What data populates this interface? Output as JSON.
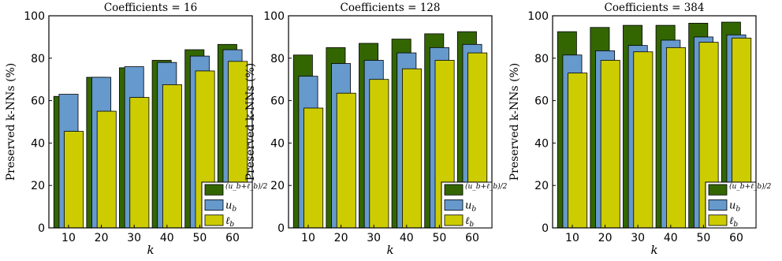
{
  "chart_data": [
    {
      "type": "bar",
      "title": "Coefficients = 16",
      "xlabel": "k",
      "ylabel": "Preserved k-NNs (%)",
      "categories": [
        "10",
        "20",
        "30",
        "40",
        "50",
        "60"
      ],
      "ylim": [
        0,
        100
      ],
      "yticks": [
        "0",
        "20",
        "40",
        "60",
        "80",
        "100"
      ],
      "grid": false,
      "legend_position": "bottom-right",
      "series": [
        {
          "name": "(u_b+ℓ_b)/2",
          "color": "#336600",
          "values": [
            62,
            71,
            75.5,
            79,
            84,
            86.5
          ]
        },
        {
          "name": "u_b",
          "color": "#6699cc",
          "values": [
            63,
            71,
            76,
            78,
            81,
            84
          ]
        },
        {
          "name": "ℓ_b",
          "color": "#cccc00",
          "values": [
            45.5,
            55,
            61.5,
            67.5,
            74,
            78.5
          ]
        }
      ]
    },
    {
      "type": "bar",
      "title": "Coefficients = 128",
      "xlabel": "k",
      "ylabel": "Preserved k-NNs (%)",
      "categories": [
        "10",
        "20",
        "30",
        "40",
        "50",
        "60"
      ],
      "ylim": [
        0,
        100
      ],
      "yticks": [
        "0",
        "20",
        "40",
        "60",
        "80",
        "100"
      ],
      "grid": false,
      "legend_position": "bottom-right",
      "series": [
        {
          "name": "(u_b+ℓ_b)/2",
          "color": "#336600",
          "values": [
            81.5,
            85,
            87,
            89,
            91.5,
            92.5
          ]
        },
        {
          "name": "u_b",
          "color": "#6699cc",
          "values": [
            71.5,
            77.5,
            79,
            82.5,
            85,
            86.5
          ]
        },
        {
          "name": "ℓ_b",
          "color": "#cccc00",
          "values": [
            56.5,
            63.5,
            70,
            75,
            79,
            82.5
          ]
        }
      ]
    },
    {
      "type": "bar",
      "title": "Coefficients = 384",
      "xlabel": "k",
      "ylabel": "Preserved k-NNs (%)",
      "categories": [
        "10",
        "20",
        "30",
        "40",
        "50",
        "60"
      ],
      "ylim": [
        0,
        100
      ],
      "yticks": [
        "0",
        "20",
        "40",
        "60",
        "80",
        "100"
      ],
      "grid": false,
      "legend_position": "bottom-right",
      "series": [
        {
          "name": "(u_b+ℓ_b)/2",
          "color": "#336600",
          "values": [
            92.5,
            94.5,
            95.5,
            95.5,
            96.5,
            97
          ]
        },
        {
          "name": "u_b",
          "color": "#6699cc",
          "values": [
            81.5,
            83.5,
            86,
            88.5,
            90,
            91
          ]
        },
        {
          "name": "ℓ_b",
          "color": "#cccc00",
          "values": [
            73,
            79,
            83,
            85,
            87.5,
            89.5
          ]
        }
      ]
    }
  ]
}
